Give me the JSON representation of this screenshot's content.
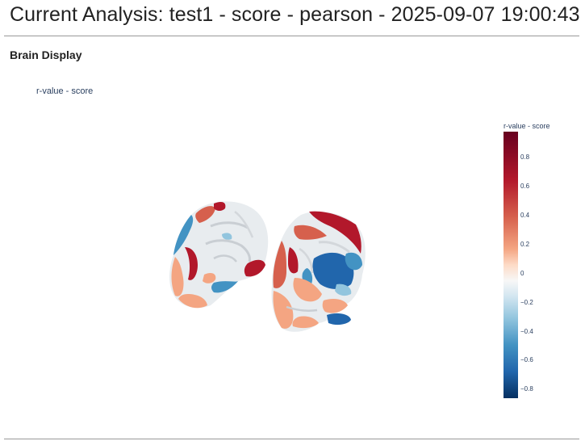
{
  "page": {
    "title": "Current Analysis: test1 - score - pearson - 2025-09-07 19:00:43"
  },
  "section": {
    "heading": "Brain Display"
  },
  "plot": {
    "title": "r-value - score",
    "colorbar": {
      "title": "r-value - score",
      "colorscale": "RdBu_r",
      "range": [
        -0.86,
        0.98
      ],
      "ticks": [
        {
          "value": 0.8,
          "label": "0.8"
        },
        {
          "value": 0.6,
          "label": "0.6"
        },
        {
          "value": 0.4,
          "label": "0.4"
        },
        {
          "value": 0.2,
          "label": "0.2"
        },
        {
          "value": 0,
          "label": "0"
        },
        {
          "value": -0.2,
          "label": "−0.2"
        },
        {
          "value": -0.4,
          "label": "−0.4"
        },
        {
          "value": -0.6,
          "label": "−0.6"
        },
        {
          "value": -0.8,
          "label": "−0.8"
        }
      ]
    },
    "colors": {
      "strong_positive": "#b2182b",
      "positive": "#d6604d",
      "weak_positive": "#f4a582",
      "neutral": "#e8ecef",
      "weak_negative": "#92c5de",
      "negative": "#4393c3",
      "strong_negative": "#2166ac"
    }
  }
}
